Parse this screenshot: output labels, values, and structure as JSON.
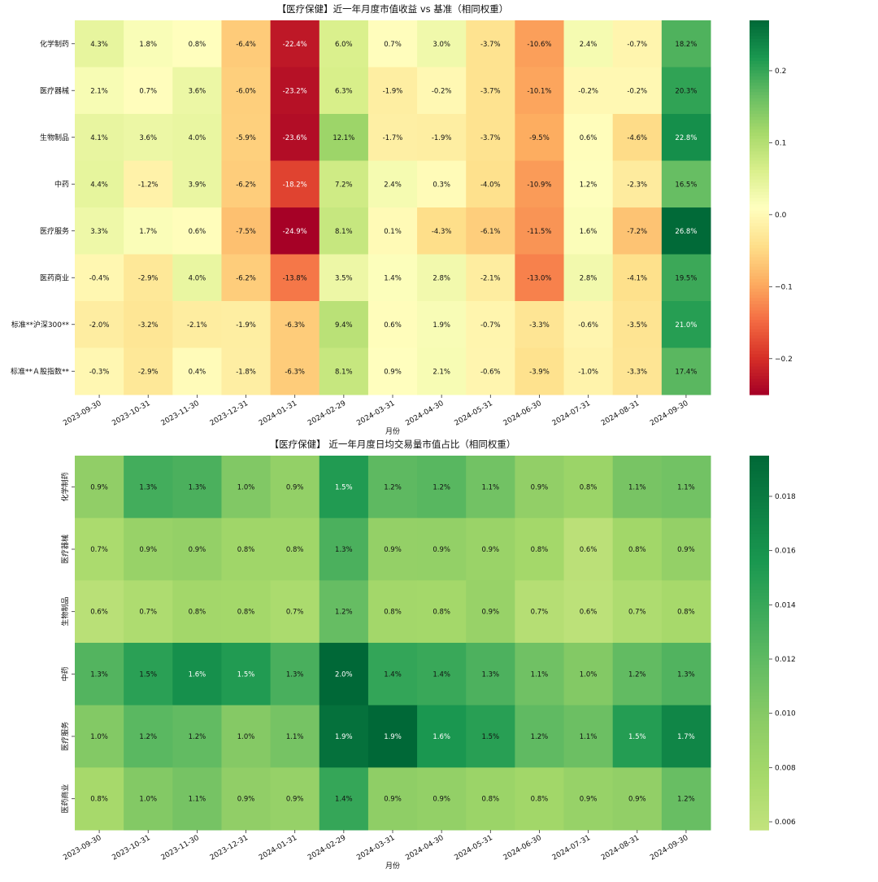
{
  "chart_data": [
    {
      "type": "heatmap",
      "title": "【医疗保健】近一年月度市值收益 vs 基准（相同权重）",
      "xlabel": "月份",
      "ylabel": "",
      "x": [
        "2023-09-30",
        "2023-10-31",
        "2023-11-30",
        "2023-12-31",
        "2024-01-31",
        "2024-02-29",
        "2024-03-31",
        "2024-04-30",
        "2024-05-31",
        "2024-06-30",
        "2024-07-31",
        "2024-08-31",
        "2024-09-30"
      ],
      "y": [
        "化学制药",
        "医疗器械",
        "生物制品",
        "中药",
        "医疗服务",
        "医药商业",
        "标准**沪深300**",
        "标准**Ａ股指数**"
      ],
      "values": [
        [
          0.043,
          0.018,
          0.008,
          -0.064,
          -0.224,
          0.06,
          0.007,
          0.03,
          -0.037,
          -0.106,
          0.024,
          -0.007,
          0.182
        ],
        [
          0.021,
          0.007,
          0.036,
          -0.06,
          -0.232,
          0.063,
          -0.019,
          -0.002,
          -0.037,
          -0.101,
          -0.002,
          -0.002,
          0.203
        ],
        [
          0.041,
          0.036,
          0.04,
          -0.059,
          -0.236,
          0.121,
          -0.017,
          -0.019,
          -0.037,
          -0.095,
          0.006,
          -0.046,
          0.228
        ],
        [
          0.044,
          -0.012,
          0.039,
          -0.062,
          -0.182,
          0.072,
          0.024,
          0.003,
          -0.04,
          -0.109,
          0.012,
          -0.023,
          0.165
        ],
        [
          0.033,
          0.017,
          0.006,
          -0.075,
          -0.249,
          0.081,
          0.001,
          -0.043,
          -0.061,
          -0.115,
          0.016,
          -0.072,
          0.268
        ],
        [
          -0.004,
          -0.029,
          0.04,
          -0.062,
          -0.138,
          0.035,
          0.014,
          0.028,
          -0.021,
          -0.13,
          0.028,
          -0.041,
          0.195
        ],
        [
          -0.02,
          -0.032,
          -0.021,
          -0.019,
          -0.063,
          0.094,
          0.006,
          0.019,
          -0.007,
          -0.033,
          -0.006,
          -0.035,
          0.21
        ],
        [
          -0.003,
          -0.029,
          0.004,
          -0.018,
          -0.063,
          0.081,
          0.009,
          0.021,
          -0.006,
          -0.039,
          -0.01,
          -0.033,
          0.174
        ]
      ],
      "cell_labels": [
        [
          "4.3%",
          "1.8%",
          "0.8%",
          "-6.4%",
          "-22.4%",
          "6.0%",
          "0.7%",
          "3.0%",
          "-3.7%",
          "-10.6%",
          "2.4%",
          "-0.7%",
          "18.2%"
        ],
        [
          "2.1%",
          "0.7%",
          "3.6%",
          "-6.0%",
          "-23.2%",
          "6.3%",
          "-1.9%",
          "-0.2%",
          "-3.7%",
          "-10.1%",
          "-0.2%",
          "-0.2%",
          "20.3%"
        ],
        [
          "4.1%",
          "3.6%",
          "4.0%",
          "-5.9%",
          "-23.6%",
          "12.1%",
          "-1.7%",
          "-1.9%",
          "-3.7%",
          "-9.5%",
          "0.6%",
          "-4.6%",
          "22.8%"
        ],
        [
          "4.4%",
          "-1.2%",
          "3.9%",
          "-6.2%",
          "-18.2%",
          "7.2%",
          "2.4%",
          "0.3%",
          "-4.0%",
          "-10.9%",
          "1.2%",
          "-2.3%",
          "16.5%"
        ],
        [
          "3.3%",
          "1.7%",
          "0.6%",
          "-7.5%",
          "-24.9%",
          "8.1%",
          "0.1%",
          "-4.3%",
          "-6.1%",
          "-11.5%",
          "1.6%",
          "-7.2%",
          "26.8%"
        ],
        [
          "-0.4%",
          "-2.9%",
          "4.0%",
          "-6.2%",
          "-13.8%",
          "3.5%",
          "1.4%",
          "2.8%",
          "-2.1%",
          "-13.0%",
          "2.8%",
          "-4.1%",
          "19.5%"
        ],
        [
          "-2.0%",
          "-3.2%",
          "-2.1%",
          "-1.9%",
          "-6.3%",
          "9.4%",
          "0.6%",
          "1.9%",
          "-0.7%",
          "-3.3%",
          "-0.6%",
          "-3.5%",
          "21.0%"
        ],
        [
          "-0.3%",
          "-2.9%",
          "0.4%",
          "-1.8%",
          "-6.3%",
          "8.1%",
          "0.9%",
          "2.1%",
          "-0.6%",
          "-3.9%",
          "-1.0%",
          "-3.3%",
          "17.4%"
        ]
      ],
      "colormap": "RdYlGn",
      "vmin": -0.25,
      "vmax": 0.27,
      "colorbar_ticks": [
        -0.2,
        -0.1,
        0,
        0.1,
        0.2
      ],
      "colorbar_tick_labels": [
        "−0.2",
        "−0.1",
        "0.0",
        "0.1",
        "0.2"
      ],
      "ytick_rotation": 0
    },
    {
      "type": "heatmap",
      "title": "【医疗保健】 近一年月度日均交易量市值占比（相同权重）",
      "xlabel": "月份",
      "ylabel": "",
      "x": [
        "2023-09-30",
        "2023-10-31",
        "2023-11-30",
        "2023-12-31",
        "2024-01-31",
        "2024-02-29",
        "2024-03-31",
        "2024-04-30",
        "2024-05-31",
        "2024-06-30",
        "2024-07-31",
        "2024-08-31",
        "2024-09-30"
      ],
      "y": [
        "化学制药",
        "医疗器械",
        "生物制品",
        "中药",
        "医疗服务",
        "医药商业"
      ],
      "values": [
        [
          0.0093,
          0.0134,
          0.013,
          0.0102,
          0.0091,
          0.0152,
          0.012,
          0.0123,
          0.011,
          0.0092,
          0.0085,
          0.0107,
          0.011
        ],
        [
          0.0073,
          0.0087,
          0.009,
          0.0081,
          0.0081,
          0.013,
          0.009,
          0.0091,
          0.0086,
          0.0078,
          0.0062,
          0.008,
          0.009
        ],
        [
          0.0063,
          0.0071,
          0.0079,
          0.0078,
          0.0073,
          0.0116,
          0.0079,
          0.0078,
          0.0087,
          0.0066,
          0.0061,
          0.0071,
          0.0076
        ],
        [
          0.0126,
          0.0147,
          0.0162,
          0.0152,
          0.0131,
          0.0195,
          0.0142,
          0.0139,
          0.0129,
          0.0111,
          0.0101,
          0.0118,
          0.0127
        ],
        [
          0.0101,
          0.0122,
          0.0118,
          0.01,
          0.0108,
          0.0188,
          0.0195,
          0.0156,
          0.0148,
          0.0119,
          0.0113,
          0.015,
          0.017
        ],
        [
          0.0076,
          0.0101,
          0.0108,
          0.0093,
          0.0089,
          0.0141,
          0.0094,
          0.0091,
          0.0085,
          0.008,
          0.0088,
          0.0092,
          0.0115
        ]
      ],
      "cell_labels": [
        [
          "0.9%",
          "1.3%",
          "1.3%",
          "1.0%",
          "0.9%",
          "1.5%",
          "1.2%",
          "1.2%",
          "1.1%",
          "0.9%",
          "0.8%",
          "1.1%",
          "1.1%"
        ],
        [
          "0.7%",
          "0.9%",
          "0.9%",
          "0.8%",
          "0.8%",
          "1.3%",
          "0.9%",
          "0.9%",
          "0.9%",
          "0.8%",
          "0.6%",
          "0.8%",
          "0.9%"
        ],
        [
          "0.6%",
          "0.7%",
          "0.8%",
          "0.8%",
          "0.7%",
          "1.2%",
          "0.8%",
          "0.8%",
          "0.9%",
          "0.7%",
          "0.6%",
          "0.7%",
          "0.8%"
        ],
        [
          "1.3%",
          "1.5%",
          "1.6%",
          "1.5%",
          "1.3%",
          "2.0%",
          "1.4%",
          "1.4%",
          "1.3%",
          "1.1%",
          "1.0%",
          "1.2%",
          "1.3%"
        ],
        [
          "1.0%",
          "1.2%",
          "1.2%",
          "1.0%",
          "1.1%",
          "1.9%",
          "1.9%",
          "1.6%",
          "1.5%",
          "1.2%",
          "1.1%",
          "1.5%",
          "1.7%"
        ],
        [
          "0.8%",
          "1.0%",
          "1.1%",
          "0.9%",
          "0.9%",
          "1.4%",
          "0.9%",
          "0.9%",
          "0.8%",
          "0.8%",
          "0.9%",
          "0.9%",
          "1.2%"
        ]
      ],
      "colormap": "YlGn-upper",
      "vmin": 0.0057,
      "vmax": 0.0195,
      "colorbar_ticks": [
        0.006,
        0.008,
        0.01,
        0.012,
        0.014,
        0.016,
        0.018
      ],
      "colorbar_tick_labels": [
        "0.006",
        "0.008",
        "0.010",
        "0.012",
        "0.014",
        "0.016",
        "0.018"
      ],
      "ytick_rotation": 90
    }
  ]
}
